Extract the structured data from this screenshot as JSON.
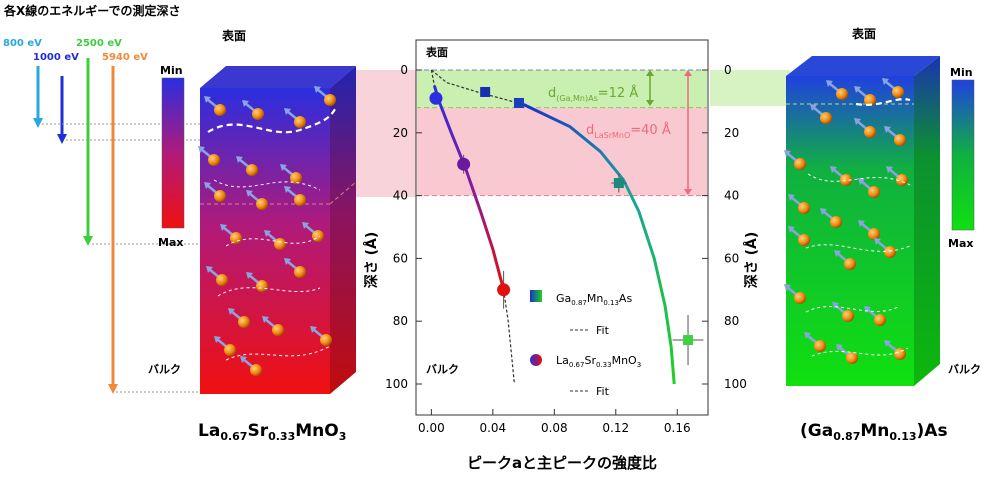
{
  "header": {
    "title": "各X線のエネルギーでの測定深さ"
  },
  "energies": [
    {
      "label": "800 eV",
      "color": "#29a8e0"
    },
    {
      "label": "1000 eV",
      "color": "#1f2fd6"
    },
    {
      "label": "2500 eV",
      "color": "#3ccf3c"
    },
    {
      "label": "5940 eV",
      "color": "#f08a3a"
    }
  ],
  "lsmo": {
    "formula_main": "La",
    "s1": "0.67",
    "el2": "Sr",
    "s2": "0.33",
    "el3": "MnO",
    "s3": "3",
    "surface": "表面",
    "bulk": "バルク",
    "colorbar_min": "Min",
    "colorbar_max": "Max"
  },
  "gamnas": {
    "open": "(Ga",
    "s1": "0.87",
    "el2": "Mn",
    "s2": "0.13",
    "close": ")As",
    "surface": "表面",
    "bulk": "バルク",
    "colorbar_min": "Min",
    "colorbar_max": "Max"
  },
  "chart_data": {
    "type": "scatter",
    "xlabel": "ピークaと主ピークの強度比",
    "ylabel_left": "深さ (Å)",
    "ylabel_right": "深さ (Å)",
    "xlim": [
      -0.01,
      0.18
    ],
    "ylim": [
      0,
      110
    ],
    "y_inverted": true,
    "x_ticks": [
      "0.00",
      "0.04",
      "0.08",
      "0.12",
      "0.16"
    ],
    "y_ticks": [
      "0",
      "20",
      "40",
      "60",
      "80",
      "100"
    ],
    "annotations": {
      "surface": "表面",
      "bulk": "バルク",
      "d_gamnas_main": "d",
      "d_gamnas_sub": "(Ga,Mn)As",
      "d_gamnas_val": "=12 Å",
      "d_lsmo_main": "d",
      "d_lsmo_sub": "LaSrMnO",
      "d_lsmo_val": "=40 Å"
    },
    "bands": [
      {
        "name": "gamnas",
        "from": 0,
        "to": 12,
        "color": "#c9f0b0"
      },
      {
        "name": "lsmo",
        "from": 12,
        "to": 40,
        "color": "#f8c9d0"
      }
    ],
    "series": [
      {
        "name": "Ga0.87Mn0.13As",
        "legend_main": "Ga",
        "l1": "0.87",
        "l2": "Mn",
        "l3": "0.13",
        "l4": "As",
        "points": [
          {
            "x": 0.035,
            "y": 7
          },
          {
            "x": 0.057,
            "y": 10.5
          },
          {
            "x": 0.122,
            "y": 36,
            "xerr": 0.005,
            "yerr": 3
          },
          {
            "x": 0.167,
            "y": 86,
            "xerr": 0.01,
            "yerr": 8
          }
        ],
        "fit": [
          [
            0.0,
            0
          ],
          [
            0.01,
            4
          ],
          [
            0.03,
            7
          ],
          [
            0.06,
            11
          ],
          [
            0.09,
            18
          ],
          [
            0.11,
            26
          ],
          [
            0.125,
            35
          ],
          [
            0.135,
            45
          ],
          [
            0.145,
            60
          ],
          [
            0.152,
            75
          ],
          [
            0.156,
            88
          ],
          [
            0.158,
            100
          ]
        ],
        "fit_solid_from": 3,
        "fit_label": "Fit"
      },
      {
        "name": "La0.67Sr0.33MnO3",
        "legend_main": "La",
        "l1": "0.67",
        "l2": "Sr",
        "l3": "0.33",
        "l4": "MnO",
        "l5": "3",
        "points": [
          {
            "x": 0.003,
            "y": 9
          },
          {
            "x": 0.021,
            "y": 30,
            "yerr": 3
          },
          {
            "x": 0.047,
            "y": 70,
            "yerr": 6
          }
        ],
        "fit": [
          [
            0.0,
            0
          ],
          [
            0.002,
            5
          ],
          [
            0.005,
            10
          ],
          [
            0.013,
            20
          ],
          [
            0.022,
            31
          ],
          [
            0.032,
            45
          ],
          [
            0.04,
            57
          ],
          [
            0.047,
            70
          ],
          [
            0.05,
            80
          ],
          [
            0.052,
            90
          ],
          [
            0.054,
            100
          ]
        ],
        "fit_solid_from": 1,
        "fit_solid_to": 7,
        "fit_label": "Fit"
      }
    ]
  }
}
